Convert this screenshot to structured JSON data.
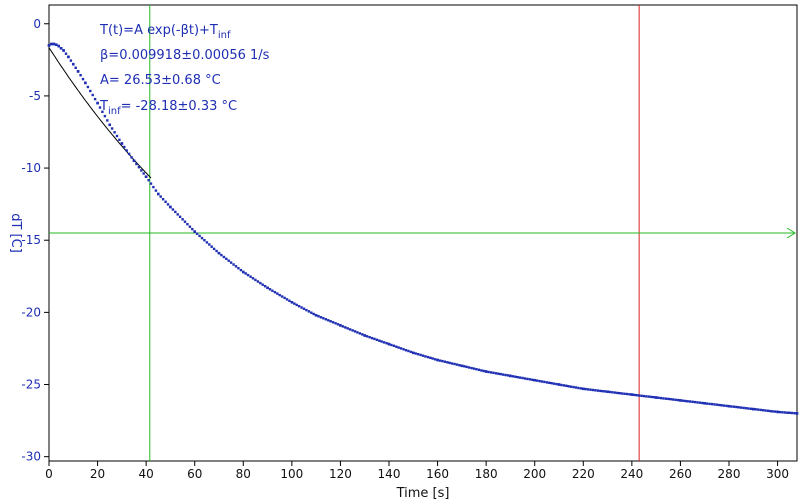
{
  "chart_data": {
    "type": "scatter",
    "xlabel": "Time [s]",
    "ylabel": "dT [C]",
    "xlim": [
      0,
      308
    ],
    "ylim": [
      -30.3,
      1.3
    ],
    "x_ticks": [
      0,
      20,
      40,
      60,
      80,
      100,
      120,
      140,
      160,
      180,
      200,
      220,
      240,
      260,
      280,
      300
    ],
    "y_ticks": [
      0,
      -5,
      -10,
      -15,
      -20,
      -25,
      -30
    ],
    "grid": false,
    "fit": {
      "model": "T(t)=A exp(-βt)+T",
      "model_sub": "inf",
      "beta_text": "β=0.009918±0.00056 1/s",
      "A_text": "A= 26.53±0.68 °C",
      "tinf_prefix": "T",
      "tinf_sub": "inf",
      "tinf_value": "= -28.18±0.33 °C",
      "A": 26.53,
      "beta": 0.009918,
      "T_inf": -28.18,
      "x_range": [
        0,
        42
      ]
    },
    "series": [
      {
        "x": [
          0,
          1,
          2,
          3,
          4,
          5,
          6,
          8,
          10,
          12,
          15,
          20,
          25,
          30,
          35,
          40,
          45,
          50,
          60,
          70,
          80,
          90,
          100,
          110,
          120,
          130,
          140,
          150,
          160,
          170,
          180,
          190,
          200,
          210,
          220,
          230,
          240,
          250,
          260,
          270,
          280,
          290,
          300,
          308
        ],
        "y": [
          -1.5,
          -1.4,
          -1.4,
          -1.45,
          -1.55,
          -1.7,
          -1.85,
          -2.3,
          -2.8,
          -3.3,
          -4.1,
          -5.5,
          -7.0,
          -8.3,
          -9.5,
          -10.6,
          -11.8,
          -12.7,
          -14.4,
          -15.9,
          -17.2,
          -18.3,
          -19.3,
          -20.2,
          -20.9,
          -21.6,
          -22.2,
          -22.8,
          -23.3,
          -23.7,
          -24.1,
          -24.4,
          -24.7,
          -25.0,
          -25.3,
          -25.5,
          -25.7,
          -25.9,
          -26.1,
          -26.3,
          -26.5,
          -26.7,
          -26.9,
          -27.0
        ],
        "color": "#1f2fb3"
      }
    ],
    "markers": {
      "green_vertical_x": 41.5,
      "red_vertical_x": 243,
      "green_horizontal_y": -14.5,
      "green_color": "#22bb22",
      "red_color": "#dd2222",
      "fit_color": "#000000"
    }
  }
}
